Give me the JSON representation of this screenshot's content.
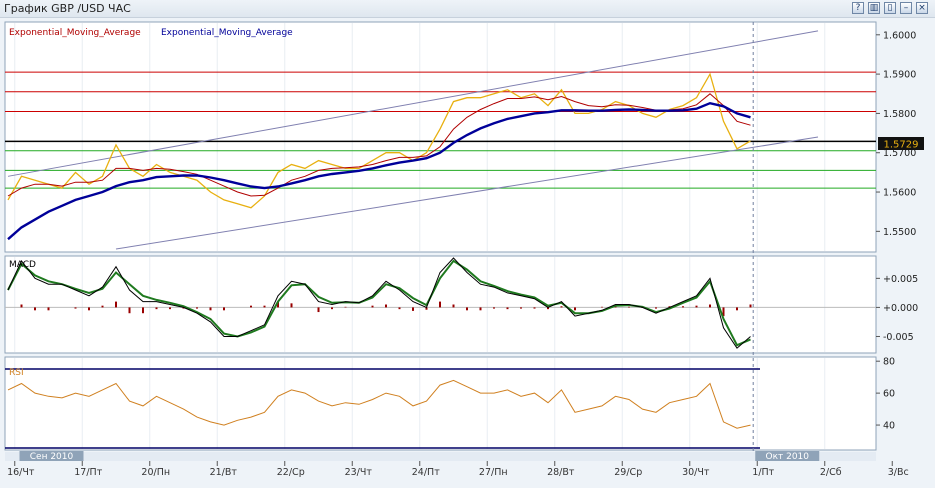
{
  "window": {
    "title": "График GBP /USD  ЧАС",
    "buttons": [
      {
        "name": "help-button",
        "glyph": "?"
      },
      {
        "name": "tile-button",
        "glyph": "▥"
      },
      {
        "name": "cascade-button",
        "glyph": "▯"
      },
      {
        "name": "minimize-button",
        "glyph": "–"
      },
      {
        "name": "close-button",
        "glyph": "×"
      }
    ]
  },
  "legend": [
    {
      "label": "Exponential_Moving_Average",
      "color": "#b00000"
    },
    {
      "label": "Exponential_Moving_Average",
      "color": "#000099"
    }
  ],
  "colors": {
    "price": "#e8b010",
    "ema_fast": "#b00000",
    "ema_slow": "#000099",
    "macd": "#000000",
    "signal": "#1f7a1f",
    "hist": "#990000",
    "rsi": "#d08020"
  },
  "chart_data": [
    {
      "type": "line",
      "panel": "price",
      "ylim": [
        1.545,
        1.603
      ],
      "yticks": [
        "1.6000",
        "1.5900",
        "1.5800",
        "1.5700",
        "1.5600",
        "1.5500"
      ],
      "last_price_label": "1.5729",
      "horizontal_lines": [
        {
          "y": 1.5905,
          "color": "#cc0000"
        },
        {
          "y": 1.5855,
          "color": "#cc0000"
        },
        {
          "y": 1.5805,
          "color": "#cc0000"
        },
        {
          "y": 1.5729,
          "color": "#000000"
        },
        {
          "y": 1.5705,
          "color": "#22aa22"
        },
        {
          "y": 1.5655,
          "color": "#22aa22"
        },
        {
          "y": 1.561,
          "color": "#22aa22"
        }
      ],
      "channel": [
        {
          "x": [
            0,
            60
          ],
          "y": [
            1.564,
            1.601
          ]
        },
        {
          "x": [
            8,
            60
          ],
          "y": [
            1.5455,
            1.574
          ]
        }
      ],
      "x": [
        0,
        1,
        2,
        3,
        4,
        5,
        6,
        7,
        8,
        9,
        10,
        11,
        12,
        13,
        14,
        15,
        16,
        17,
        18,
        19,
        20,
        21,
        22,
        23,
        24,
        25,
        26,
        27,
        28,
        29,
        30,
        31,
        32,
        33,
        34,
        35,
        36,
        37,
        38,
        39,
        40,
        41,
        42,
        43,
        44,
        45,
        46,
        47,
        48,
        49,
        50,
        51,
        52,
        53,
        54,
        55
      ],
      "series": [
        {
          "key": "price",
          "values": [
            1.558,
            1.564,
            1.563,
            1.562,
            1.561,
            1.565,
            1.562,
            1.564,
            1.572,
            1.566,
            1.564,
            1.567,
            1.565,
            1.564,
            1.563,
            1.56,
            1.558,
            1.557,
            1.556,
            1.559,
            1.565,
            1.567,
            1.566,
            1.568,
            1.567,
            1.566,
            1.566,
            1.568,
            1.57,
            1.57,
            1.568,
            1.57,
            1.576,
            1.583,
            1.584,
            1.584,
            1.585,
            1.586,
            1.584,
            1.585,
            1.582,
            1.586,
            1.58,
            1.58,
            1.581,
            1.583,
            1.582,
            1.58,
            1.579,
            1.581,
            1.582,
            1.584,
            1.59,
            1.578,
            1.571,
            1.573
          ]
        },
        {
          "key": "ema_fast",
          "values": [
            1.559,
            1.561,
            1.562,
            1.562,
            1.5615,
            1.5625,
            1.5625,
            1.563,
            1.566,
            1.566,
            1.5655,
            1.566,
            1.5658,
            1.5652,
            1.5645,
            1.563,
            1.5615,
            1.56,
            1.559,
            1.5592,
            1.561,
            1.563,
            1.564,
            1.5655,
            1.566,
            1.5662,
            1.5664,
            1.567,
            1.568,
            1.5688,
            1.5688,
            1.5692,
            1.5715,
            1.576,
            1.579,
            1.581,
            1.5825,
            1.5838,
            1.5838,
            1.5842,
            1.5835,
            1.5843,
            1.583,
            1.582,
            1.5817,
            1.5822,
            1.5821,
            1.5815,
            1.5808,
            1.5809,
            1.5812,
            1.5822,
            1.585,
            1.582,
            1.578,
            1.577
          ]
        },
        {
          "key": "ema_slow",
          "values": [
            1.548,
            1.551,
            1.553,
            1.555,
            1.5565,
            1.558,
            1.559,
            1.56,
            1.5615,
            1.5625,
            1.563,
            1.5638,
            1.564,
            1.5642,
            1.5642,
            1.5637,
            1.563,
            1.5622,
            1.5614,
            1.561,
            1.5614,
            1.5622,
            1.563,
            1.564,
            1.5646,
            1.565,
            1.5654,
            1.566,
            1.5668,
            1.5675,
            1.568,
            1.5686,
            1.57,
            1.5725,
            1.5745,
            1.5762,
            1.5775,
            1.5786,
            1.5793,
            1.58,
            1.5803,
            1.5808,
            1.5808,
            1.5807,
            1.5807,
            1.5809,
            1.581,
            1.5809,
            1.5807,
            1.5807,
            1.5808,
            1.5812,
            1.5826,
            1.5818,
            1.58,
            1.579
          ]
        }
      ]
    },
    {
      "type": "line",
      "panel": "macd",
      "title": "MACD",
      "ylim": [
        -0.0075,
        0.0085
      ],
      "yticks": [
        "+0.005",
        "+0.000",
        "-0.005"
      ],
      "x": [
        0,
        1,
        2,
        3,
        4,
        5,
        6,
        7,
        8,
        9,
        10,
        11,
        12,
        13,
        14,
        15,
        16,
        17,
        18,
        19,
        20,
        21,
        22,
        23,
        24,
        25,
        26,
        27,
        28,
        29,
        30,
        31,
        32,
        33,
        34,
        35,
        36,
        37,
        38,
        39,
        40,
        41,
        42,
        43,
        44,
        45,
        46,
        47,
        48,
        49,
        50,
        51,
        52,
        53,
        54,
        55
      ],
      "series": [
        {
          "key": "macd",
          "values": [
            0.003,
            0.008,
            0.005,
            0.004,
            0.004,
            0.003,
            0.002,
            0.0035,
            0.007,
            0.003,
            0.001,
            0.001,
            0.0005,
            0.0,
            -0.001,
            -0.0025,
            -0.005,
            -0.005,
            -0.004,
            -0.003,
            0.002,
            0.0045,
            0.004,
            0.001,
            0.0005,
            0.001,
            0.0008,
            0.002,
            0.0045,
            0.003,
            0.001,
            0.0,
            0.006,
            0.0085,
            0.006,
            0.004,
            0.0035,
            0.0025,
            0.002,
            0.0015,
            0.0,
            0.001,
            -0.0015,
            -0.001,
            -0.0005,
            0.0005,
            0.0005,
            0.0,
            -0.001,
            0.0,
            0.001,
            0.002,
            0.005,
            -0.0035,
            -0.007,
            -0.005
          ]
        },
        {
          "key": "signal",
          "values": [
            0.003,
            0.0075,
            0.0055,
            0.0045,
            0.004,
            0.0032,
            0.0025,
            0.0032,
            0.006,
            0.004,
            0.002,
            0.0013,
            0.0008,
            0.0002,
            -0.0008,
            -0.002,
            -0.0045,
            -0.005,
            -0.0043,
            -0.0033,
            0.001,
            0.0038,
            0.004,
            0.0018,
            0.0008,
            0.0009,
            0.0008,
            0.0017,
            0.004,
            0.0033,
            0.0016,
            0.0004,
            0.005,
            0.008,
            0.0065,
            0.0045,
            0.0037,
            0.0028,
            0.0022,
            0.0017,
            0.0003,
            0.0008,
            -0.001,
            -0.001,
            -0.0006,
            0.0003,
            0.0004,
            0.0001,
            -0.0008,
            -0.0002,
            0.0008,
            0.0017,
            0.0045,
            -0.002,
            -0.0065,
            -0.0055
          ]
        },
        {
          "key": "hist",
          "values": [
            0.0,
            0.0005,
            -0.0005,
            -0.0005,
            0.0,
            -0.0002,
            -0.0005,
            0.0003,
            0.001,
            -0.001,
            -0.001,
            -0.0003,
            -0.0003,
            -0.0002,
            -0.0002,
            -0.0005,
            -0.0005,
            0.0,
            0.0003,
            0.0003,
            0.001,
            0.0007,
            0.0,
            -0.0008,
            -0.0003,
            0.0001,
            0.0,
            0.0003,
            0.0005,
            -0.0003,
            -0.0006,
            -0.0004,
            0.001,
            0.0005,
            -0.0005,
            -0.0005,
            -0.0002,
            -0.0003,
            -0.0002,
            -0.0002,
            -0.0003,
            0.0002,
            -0.0005,
            0.0,
            0.0001,
            0.0002,
            0.0001,
            -0.0001,
            -0.0002,
            0.0002,
            0.0002,
            0.0003,
            0.0005,
            -0.0015,
            -0.0005,
            0.0005
          ]
        }
      ]
    },
    {
      "type": "line",
      "panel": "rsi",
      "title": "RSI",
      "ylim": [
        25,
        82
      ],
      "yticks": [
        "80",
        "60",
        "40"
      ],
      "x": [
        0,
        1,
        2,
        3,
        4,
        5,
        6,
        7,
        8,
        9,
        10,
        11,
        12,
        13,
        14,
        15,
        16,
        17,
        18,
        19,
        20,
        21,
        22,
        23,
        24,
        25,
        26,
        27,
        28,
        29,
        30,
        31,
        32,
        33,
        34,
        35,
        36,
        37,
        38,
        39,
        40,
        41,
        42,
        43,
        44,
        45,
        46,
        47,
        48,
        49,
        50,
        51,
        52,
        53,
        54,
        55
      ],
      "series": [
        {
          "key": "rsi",
          "values": [
            62,
            66,
            60,
            58,
            57,
            60,
            58,
            62,
            66,
            55,
            52,
            58,
            54,
            50,
            45,
            42,
            40,
            43,
            45,
            48,
            58,
            62,
            60,
            55,
            52,
            54,
            53,
            56,
            60,
            58,
            52,
            55,
            65,
            68,
            64,
            60,
            60,
            62,
            58,
            60,
            54,
            62,
            48,
            50,
            52,
            58,
            56,
            50,
            48,
            54,
            56,
            58,
            66,
            42,
            38,
            40
          ]
        }
      ]
    }
  ],
  "time_axis": {
    "labels": [
      {
        "x": 1,
        "label": "16/Чт"
      },
      {
        "x": 6,
        "label": "17/Пт"
      },
      {
        "x": 11,
        "label": "20/Пн"
      },
      {
        "x": 16,
        "label": "21/Вт"
      },
      {
        "x": 21,
        "label": "22/Ср"
      },
      {
        "x": 26,
        "label": "23/Чт"
      },
      {
        "x": 31,
        "label": "24/Пт"
      },
      {
        "x": 36,
        "label": "27/Пн"
      },
      {
        "x": 41,
        "label": "28/Вт"
      },
      {
        "x": 46,
        "label": "29/Ср"
      },
      {
        "x": 51,
        "label": "30/Чт"
      },
      {
        "x": 56,
        "label": "1/Пт"
      },
      {
        "x": 61,
        "label": "2/Сб"
      },
      {
        "x": 66,
        "label": "3/Вс"
      }
    ],
    "period_labels": [
      {
        "x": 1.5,
        "label": "Сен 2010"
      },
      {
        "x": 56,
        "label": "Окт 2010"
      }
    ],
    "current_marker_x": 55.2
  }
}
